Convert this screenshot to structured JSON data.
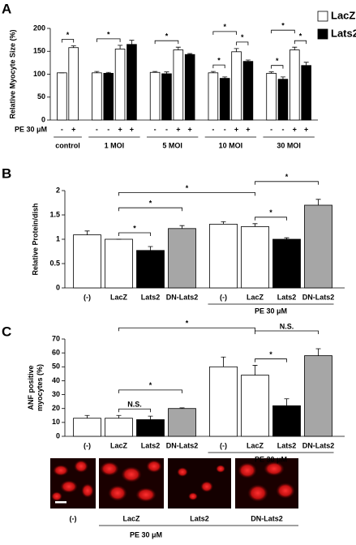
{
  "panel_labels": [
    "A",
    "B",
    "C"
  ],
  "chart_data": [
    {
      "type": "grouped_bar",
      "ylabel": "Relative Myocyte Size (%)",
      "ylim": [
        0,
        200
      ],
      "yticks": [
        0,
        50,
        100,
        150,
        200
      ],
      "series": [
        {
          "name": "LacZ",
          "color": "#ffffff"
        },
        {
          "name": "Lats2",
          "color": "#000000"
        }
      ],
      "row_label": "PE 30 μM",
      "groups": [
        {
          "label": "control",
          "pe": [
            "-",
            "+"
          ],
          "bars": [
            {
              "series": 0,
              "value": 103,
              "error": 0
            },
            {
              "series": 0,
              "value": 158,
              "error": 4
            }
          ]
        },
        {
          "label": "1 MOI",
          "pe": [
            "-",
            "-",
            "+",
            "+"
          ],
          "bars": [
            {
              "series": 0,
              "value": 103,
              "error": 3
            },
            {
              "series": 1,
              "value": 102,
              "error": 2
            },
            {
              "series": 0,
              "value": 155,
              "error": 8
            },
            {
              "series": 1,
              "value": 165,
              "error": 9
            }
          ]
        },
        {
          "label": "5 MOI",
          "pe": [
            "-",
            "-",
            "+",
            "+"
          ],
          "bars": [
            {
              "series": 0,
              "value": 104,
              "error": 2
            },
            {
              "series": 1,
              "value": 101,
              "error": 4
            },
            {
              "series": 0,
              "value": 153,
              "error": 6
            },
            {
              "series": 1,
              "value": 143,
              "error": 2
            }
          ]
        },
        {
          "label": "10 MOI",
          "pe": [
            "-",
            "-",
            "+",
            "+"
          ],
          "bars": [
            {
              "series": 0,
              "value": 103,
              "error": 3
            },
            {
              "series": 1,
              "value": 91,
              "error": 3
            },
            {
              "series": 0,
              "value": 149,
              "error": 7
            },
            {
              "series": 1,
              "value": 128,
              "error": 3
            }
          ]
        },
        {
          "label": "30 MOI",
          "pe": [
            "-",
            "-",
            "+",
            "+"
          ],
          "bars": [
            {
              "series": 0,
              "value": 102,
              "error": 3
            },
            {
              "series": 1,
              "value": 89,
              "error": 5
            },
            {
              "series": 0,
              "value": 153,
              "error": 6
            },
            {
              "series": 1,
              "value": 119,
              "error": 7
            }
          ]
        }
      ],
      "brackets": [
        {
          "group": 0,
          "from": 0,
          "to": 1,
          "label": "*"
        },
        {
          "group": 1,
          "from": 0,
          "to": 2,
          "label": "*"
        },
        {
          "group": 2,
          "from": 0,
          "to": 2,
          "label": "*"
        },
        {
          "group": 3,
          "from": 0,
          "to": 1,
          "label": "*"
        },
        {
          "group": 3,
          "from": 2,
          "to": 3,
          "label": "*"
        },
        {
          "group": 3,
          "from": 0,
          "to": 2,
          "label": "*"
        },
        {
          "group": 4,
          "from": 0,
          "to": 1,
          "label": "*"
        },
        {
          "group": 4,
          "from": 2,
          "to": 3,
          "label": "*"
        },
        {
          "group": 4,
          "from": 0,
          "to": 2,
          "label": "*"
        }
      ]
    },
    {
      "type": "bar",
      "ylabel": "Relative Protein/dish",
      "ylim": [
        0,
        2
      ],
      "yticks": [
        0,
        0.5,
        1,
        1.5,
        2
      ],
      "categories": [
        "(-)",
        "LacZ",
        "Lats2",
        "DN-Lats2",
        "(-)",
        "LacZ",
        "Lats2",
        "DN-Lats2"
      ],
      "values": [
        1.09,
        1.0,
        0.77,
        1.22,
        1.31,
        1.26,
        1.0,
        1.7
      ],
      "errors": [
        0.08,
        0,
        0.08,
        0.06,
        0.05,
        0.06,
        0.03,
        0.12
      ],
      "colors": [
        "#ffffff",
        "#ffffff",
        "#000000",
        "#a6a6a6",
        "#ffffff",
        "#ffffff",
        "#000000",
        "#a6a6a6"
      ],
      "span_label": "PE 30 μM",
      "span": [
        4,
        7
      ],
      "brackets": [
        {
          "from": 1,
          "to": 2,
          "label": "*"
        },
        {
          "from": 1,
          "to": 3,
          "label": "*"
        },
        {
          "from": 1,
          "to": 5,
          "label": "*"
        },
        {
          "from": 5,
          "to": 6,
          "label": "*"
        },
        {
          "from": 5,
          "to": 7,
          "label": "*"
        }
      ]
    },
    {
      "type": "bar",
      "ylabel": [
        "ANF positive",
        "myocytes (%)"
      ],
      "ylim": [
        0,
        70
      ],
      "yticks": [
        0,
        10,
        20,
        30,
        40,
        50,
        60,
        70
      ],
      "categories": [
        "(-)",
        "LacZ",
        "Lats2",
        "DN-Lats2",
        "(-)",
        "LacZ",
        "Lats2",
        "DN-Lats2"
      ],
      "values": [
        13,
        13,
        12,
        20,
        50,
        44,
        22,
        58
      ],
      "errors": [
        2,
        2,
        2.5,
        0.5,
        7,
        7,
        5,
        5
      ],
      "colors": [
        "#ffffff",
        "#ffffff",
        "#000000",
        "#a6a6a6",
        "#ffffff",
        "#ffffff",
        "#000000",
        "#a6a6a6"
      ],
      "span_label": "PE 30 μM",
      "span": [
        4,
        7
      ],
      "brackets": [
        {
          "from": 1,
          "to": 2,
          "label": "N.S."
        },
        {
          "from": 1,
          "to": 3,
          "label": "*"
        },
        {
          "from": 1,
          "to": 5,
          "label": "*"
        },
        {
          "from": 5,
          "to": 6,
          "label": "*"
        },
        {
          "from": 5,
          "to": 7,
          "label": "N.S."
        }
      ]
    }
  ],
  "micrographs": {
    "labels": [
      "(-)",
      "LacZ",
      "Lats2",
      "DN-Lats2"
    ],
    "group_label": "PE 30 μM"
  }
}
